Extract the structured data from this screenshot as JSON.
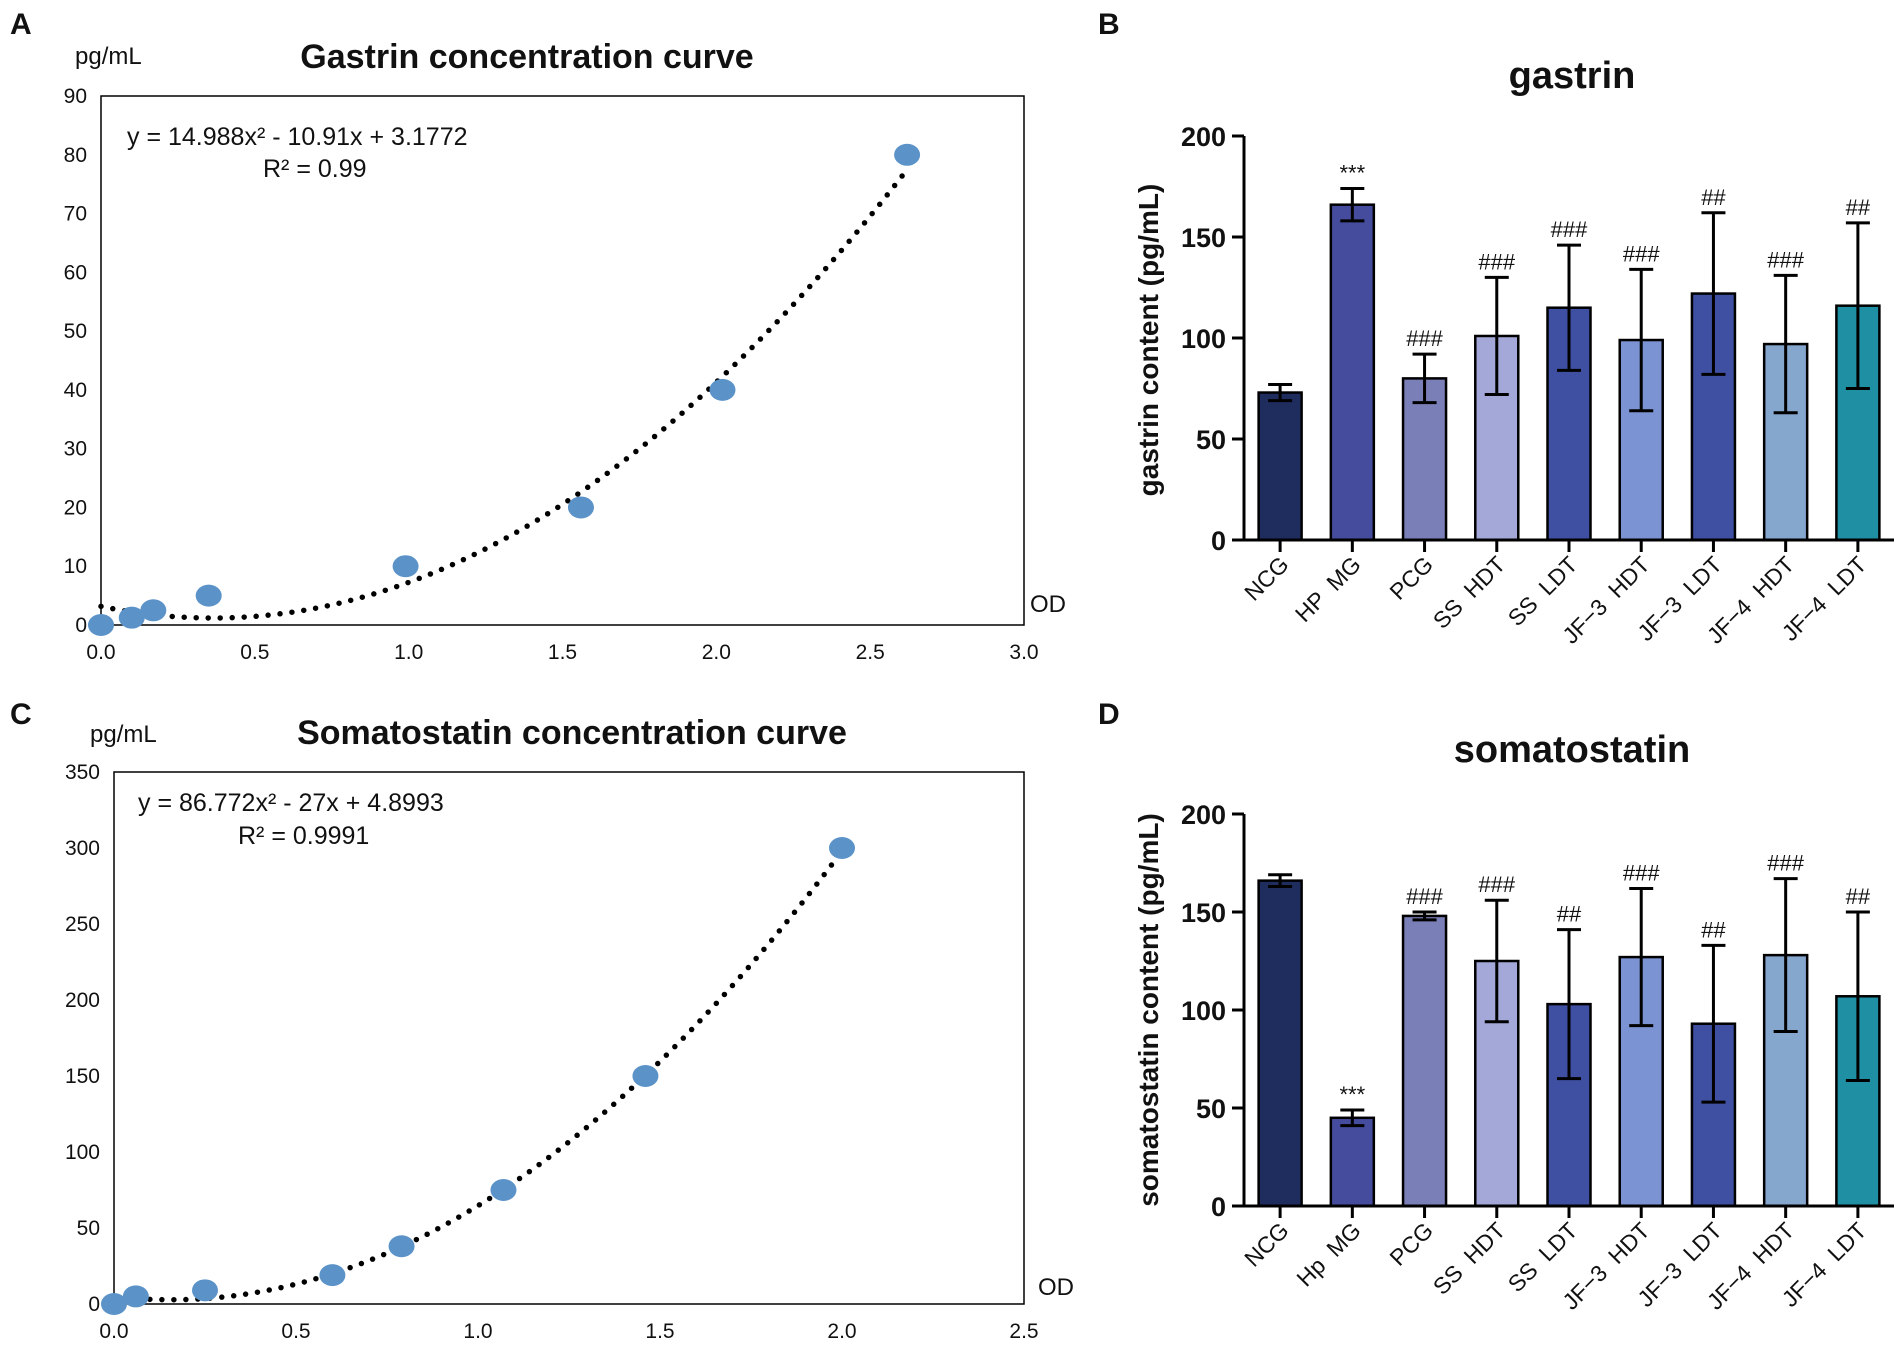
{
  "panels": {
    "a": "A",
    "b": "B",
    "c": "C",
    "d": "D"
  },
  "colors": {
    "point": "#5b93c9",
    "fit": "#000000",
    "axis": "#000000"
  },
  "chart_data": [
    {
      "id": "A",
      "type": "scatter",
      "title": "Gastrin concentration curve",
      "ylabel": "pg/mL",
      "xlabel": "OD",
      "equation": "y = 14.988x² - 10.91x + 3.1772",
      "r2": "R² = 0.99",
      "xlim": [
        0,
        3
      ],
      "ylim": [
        0,
        90
      ],
      "xticks": [
        "0.0",
        "0.5",
        "1.0",
        "1.5",
        "2.0",
        "2.5",
        "3.0"
      ],
      "yticks": [
        "0",
        "10",
        "20",
        "30",
        "40",
        "50",
        "60",
        "70",
        "80",
        "90"
      ],
      "fit": {
        "a": 14.988,
        "b": -10.91,
        "c": 3.1772
      },
      "points": [
        {
          "x": 0.0,
          "y": 0
        },
        {
          "x": 0.1,
          "y": 1.25
        },
        {
          "x": 0.17,
          "y": 2.5
        },
        {
          "x": 0.35,
          "y": 5
        },
        {
          "x": 0.99,
          "y": 10
        },
        {
          "x": 1.56,
          "y": 20
        },
        {
          "x": 2.02,
          "y": 40
        },
        {
          "x": 2.62,
          "y": 80
        }
      ]
    },
    {
      "id": "B",
      "type": "bar",
      "title": "gastrin",
      "ylabel": "gastrin content (pg/mL)",
      "ylim": [
        0,
        200
      ],
      "yticks": [
        "0",
        "50",
        "100",
        "150",
        "200"
      ],
      "categories": [
        "NCG",
        "HP  MG",
        "PCG",
        "SS  HDT",
        "SS  LDT",
        "JF−3  HDT",
        "JF−3  LDT",
        "JF−4  HDT",
        "JF−4  LDT"
      ],
      "values": [
        73,
        166,
        80,
        101,
        115,
        99,
        122,
        97,
        116
      ],
      "errors": [
        4,
        8,
        12,
        29,
        31,
        35,
        40,
        34,
        41
      ],
      "significance": [
        "",
        "***",
        "###",
        "###",
        "###",
        "###",
        "##",
        "###",
        "##"
      ],
      "bar_colors": [
        "#1f2d5e",
        "#454c9d",
        "#7b7fb7",
        "#a3a8d8",
        "#3f50a3",
        "#7b93d3",
        "#3f50a3",
        "#85a6cd",
        "#1f8fa3"
      ]
    },
    {
      "id": "C",
      "type": "scatter",
      "title": "Somatostatin concentration curve",
      "ylabel": "pg/mL",
      "xlabel": "OD",
      "equation": "y = 86.772x² - 27x + 4.8993",
      "r2": "R² = 0.9991",
      "xlim": [
        0,
        2.5
      ],
      "ylim": [
        0,
        350
      ],
      "xticks": [
        "0.0",
        "0.5",
        "1.0",
        "1.5",
        "2.0",
        "2.5"
      ],
      "yticks": [
        "0",
        "50",
        "100",
        "150",
        "200",
        "250",
        "300",
        "350"
      ],
      "fit": {
        "a": 86.772,
        "b": -27,
        "c": 4.8993
      },
      "points": [
        {
          "x": 0.0,
          "y": 0
        },
        {
          "x": 0.06,
          "y": 5
        },
        {
          "x": 0.25,
          "y": 9
        },
        {
          "x": 0.6,
          "y": 19
        },
        {
          "x": 0.79,
          "y": 38
        },
        {
          "x": 1.07,
          "y": 75
        },
        {
          "x": 1.46,
          "y": 150
        },
        {
          "x": 2.0,
          "y": 300
        }
      ]
    },
    {
      "id": "D",
      "type": "bar",
      "title": "somatostatin",
      "ylabel": "somatostatin content (pg/mL)",
      "ylim": [
        0,
        200
      ],
      "yticks": [
        "0",
        "50",
        "100",
        "150",
        "200"
      ],
      "categories": [
        "NCG",
        "Hp  MG",
        "PCG",
        "SS  HDT",
        "SS  LDT",
        "JF−3  HDT",
        "JF−3  LDT",
        "JF−4  HDT",
        "JF−4  LDT"
      ],
      "values": [
        166,
        45,
        148,
        125,
        103,
        127,
        93,
        128,
        107
      ],
      "errors": [
        3,
        4,
        2,
        31,
        38,
        35,
        40,
        39,
        43
      ],
      "significance": [
        "",
        "***",
        "###",
        "###",
        "##",
        "###",
        "##",
        "###",
        "##"
      ],
      "bar_colors": [
        "#1f2d5e",
        "#454c9d",
        "#7b7fb7",
        "#a3a8d8",
        "#3f50a3",
        "#7b93d3",
        "#3f50a3",
        "#85a6cd",
        "#1f8fa3"
      ]
    }
  ]
}
